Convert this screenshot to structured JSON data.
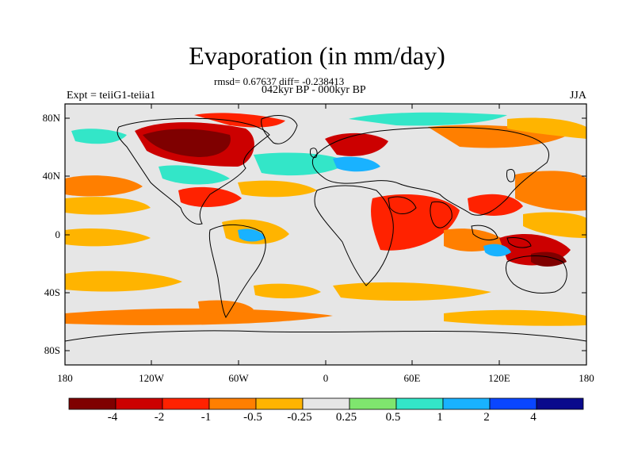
{
  "map": {
    "title": "Evaporation (in mm/day)",
    "stats": "rmsd= 0.67637 diff= -0.238413",
    "period": "042kyr BP - 000kyr BP",
    "experiment": "Expt = teiiG1-teiia1",
    "season": "JJA",
    "lat_labels": [
      "80N",
      "40N",
      "0",
      "40S",
      "80S"
    ],
    "lon_labels": [
      "180",
      "120W",
      "60W",
      "0",
      "60E",
      "120E",
      "180"
    ]
  },
  "colorbar": {
    "labels": [
      "-4",
      "-2",
      "-1",
      "-0.5",
      "-0.25",
      "0.25",
      "0.5",
      "1",
      "2",
      "4"
    ],
    "colors": [
      "#7f0000",
      "#cc0000",
      "#ff2200",
      "#ff7f00",
      "#ffb400",
      "#e6e6e6",
      "#7fe66e",
      "#33e6c8",
      "#19b2ff",
      "#0a46ff",
      "#0a0a8c"
    ]
  }
}
